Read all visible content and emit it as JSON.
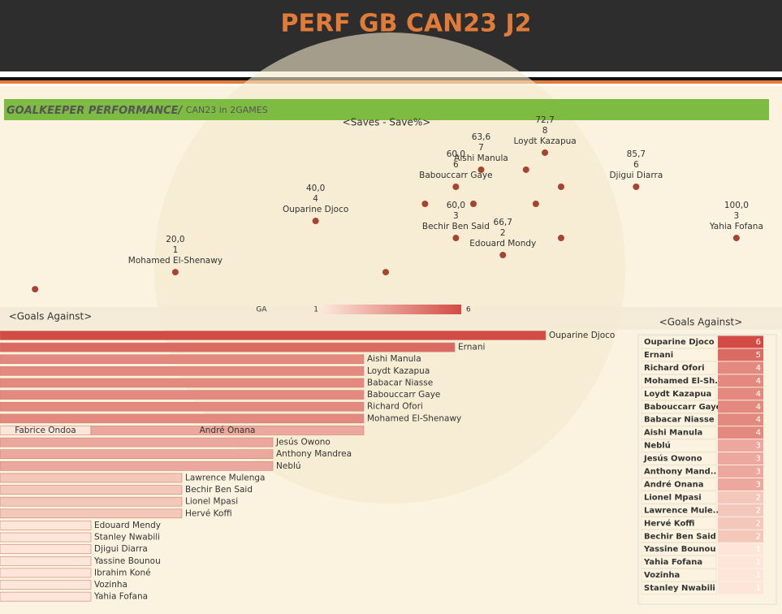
{
  "header": {
    "title": "PERF GB CAN23 J2"
  },
  "banner": {
    "title": "GOALKEEPER PERFORMANCE/",
    "subtitle": "CAN23 in 2GAMES"
  },
  "chart_data": [
    {
      "type": "scatter",
      "title": "<Saves - Save%>",
      "color": "#a8432f",
      "xlim": [
        -5,
        106.5
      ],
      "ylim": [
        -0.9,
        9.33
      ],
      "names": [
        "Mohamed El-Shenawy",
        "Ouparine Djoco",
        "Babouccarr Gaye",
        "Bechir Ben Said",
        "Aishi Manula",
        "Edouard Mondy",
        "Loydt Kazapua",
        "Djigui Diarra",
        "Yahia Fofana",
        null,
        null,
        null,
        null,
        null,
        null,
        null,
        null
      ],
      "x": [
        20,
        40,
        60,
        60,
        63.6,
        66.7,
        72.7,
        85.7,
        100,
        0,
        55.6,
        62.5,
        50,
        71.4,
        70,
        75,
        75
      ],
      "x_labels": [
        "20,0",
        "40,0",
        "60,0",
        "60,0",
        "63,6",
        "66,7",
        "72,7",
        "85,7",
        "100,0",
        null,
        null,
        null,
        null,
        null,
        null,
        null,
        null
      ],
      "values": [
        1,
        4,
        6,
        3,
        7,
        2,
        8,
        6,
        3,
        0,
        5,
        5,
        1,
        5,
        7,
        6,
        3
      ]
    },
    {
      "type": "bar",
      "orientation": "horizontal",
      "title": "<Goals Against>",
      "legend": {
        "title": "GA",
        "min": 1,
        "max": 6
      },
      "colors": [
        "#fde6d9",
        "#d24b45"
      ],
      "xlim": [
        0,
        6.875
      ],
      "rows": [
        [
          {
            "label": "Ouparine Djoco",
            "value": 6
          }
        ],
        [
          {
            "label": "Ernani",
            "value": 5
          }
        ],
        [
          {
            "label": "Aishi Manula",
            "value": 4
          }
        ],
        [
          {
            "label": "Loydt Kazapua",
            "value": 4
          }
        ],
        [
          {
            "label": "Babacar Niasse",
            "value": 4
          }
        ],
        [
          {
            "label": "Babouccarr Gaye",
            "value": 4
          }
        ],
        [
          {
            "label": "Richard Ofori",
            "value": 4
          }
        ],
        [
          {
            "label": "Mohamed El-Shenawy",
            "value": 4
          }
        ],
        [
          {
            "label": "Fabrice Ondoa",
            "value": 1
          },
          {
            "label": "André Onana",
            "value": 3
          }
        ],
        [
          {
            "label": "Jesús Owono",
            "value": 3
          }
        ],
        [
          {
            "label": "Anthony Mandrea",
            "value": 3
          }
        ],
        [
          {
            "label": "Neblú",
            "value": 3
          }
        ],
        [
          {
            "label": "Lawrence Mulenga",
            "value": 2
          }
        ],
        [
          {
            "label": "Bechir Ben Said",
            "value": 2
          }
        ],
        [
          {
            "label": "Lionel Mpasi",
            "value": 2
          }
        ],
        [
          {
            "label": "Hervé Koffi",
            "value": 2
          }
        ],
        [
          {
            "label": "Edouard Mendy",
            "value": 1
          }
        ],
        [
          {
            "label": "Stanley Nwabili",
            "value": 1
          }
        ],
        [
          {
            "label": "Djigui Diarra",
            "value": 1
          }
        ],
        [
          {
            "label": "Yassine Bounou",
            "value": 1
          }
        ],
        [
          {
            "label": "Ibrahim Koné",
            "value": 1
          }
        ],
        [
          {
            "label": "Vozinha",
            "value": 1
          }
        ],
        [
          {
            "label": "Yahia Fofana",
            "value": 1
          }
        ]
      ]
    }
  ],
  "table": {
    "title": "<Goals Against>",
    "rows": [
      [
        "Ouparine Djoco",
        6
      ],
      [
        "Ernani",
        5
      ],
      [
        "Richard Ofori",
        4
      ],
      [
        "Mohamed El-Sh..",
        4
      ],
      [
        "Loydt Kazapua",
        4
      ],
      [
        "Babouccarr Gaye",
        4
      ],
      [
        "Babacar Niasse",
        4
      ],
      [
        "Aishi Manula",
        4
      ],
      [
        "Neblú",
        3
      ],
      [
        "Jesús Owono",
        3
      ],
      [
        "Anthony Mand..",
        3
      ],
      [
        "André Onana",
        3
      ],
      [
        "Lionel Mpasi",
        2
      ],
      [
        "Lawrence Mule..",
        2
      ],
      [
        "Hervé Koffi",
        2
      ],
      [
        "Bechir Ben Said",
        2
      ],
      [
        "Yassine Bounou",
        1
      ],
      [
        "Yahia Fofana",
        1
      ],
      [
        "Vozinha",
        1
      ],
      [
        "Stanley Nwabili",
        1
      ]
    ]
  }
}
